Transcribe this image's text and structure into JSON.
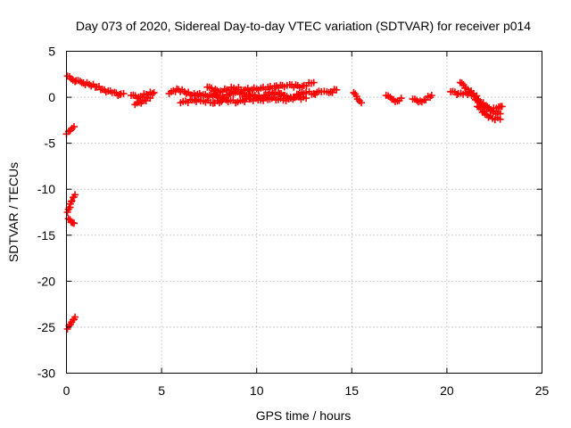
{
  "chart_data": {
    "type": "scatter",
    "title": "Day 073 of 2020, Sidereal Day-to-day VTEC variation (SDTVAR) for receiver p014",
    "xlabel": "GPS time / hours",
    "ylabel": "SDTVAR / TECUs",
    "xlim": [
      0,
      25
    ],
    "ylim": [
      -30,
      5
    ],
    "xticks": [
      0,
      5,
      10,
      15,
      20,
      25
    ],
    "yticks": [
      -30,
      -25,
      -20,
      -15,
      -10,
      -5,
      0,
      5
    ],
    "grid": true,
    "marker": "plus",
    "color": "#ff0000",
    "series": [
      {
        "name": "SDTVAR",
        "segments": [
          [
            [
              0.05,
              2.3
            ],
            [
              0.25,
              2.0
            ],
            [
              0.45,
              1.7
            ]
          ],
          [
            [
              0.5,
              1.8
            ],
            [
              0.8,
              1.6
            ],
            [
              1.2,
              1.4
            ],
            [
              1.6,
              1.1
            ],
            [
              2.0,
              0.8
            ],
            [
              2.4,
              0.5
            ],
            [
              2.8,
              0.3
            ],
            [
              3.0,
              0.4
            ]
          ],
          [
            [
              3.4,
              0.2
            ],
            [
              3.8,
              0.0
            ],
            [
              4.2,
              0.3
            ],
            [
              4.6,
              0.5
            ]
          ],
          [
            [
              3.6,
              -0.8
            ],
            [
              4.0,
              -0.4
            ],
            [
              4.4,
              -0.1
            ]
          ],
          [
            [
              5.4,
              0.4
            ],
            [
              5.8,
              0.9
            ],
            [
              6.2,
              0.6
            ],
            [
              6.6,
              0.2
            ],
            [
              7.0,
              0.4
            ],
            [
              7.4,
              0.1
            ],
            [
              7.8,
              0.3
            ],
            [
              8.2,
              -0.1
            ],
            [
              8.6,
              0.4
            ],
            [
              9.0,
              0.6
            ],
            [
              9.4,
              0.1
            ],
            [
              9.8,
              0.3
            ],
            [
              10.2,
              -0.1
            ],
            [
              10.6,
              0.3
            ],
            [
              11.0,
              0.5
            ],
            [
              11.4,
              0.2
            ],
            [
              11.8,
              -0.1
            ],
            [
              12.2,
              0.3
            ],
            [
              12.6,
              0.5
            ],
            [
              13.0,
              0.4
            ],
            [
              13.4,
              0.6
            ],
            [
              13.8,
              0.5
            ],
            [
              14.2,
              0.8
            ]
          ],
          [
            [
              6.0,
              -0.6
            ],
            [
              6.6,
              -0.3
            ],
            [
              7.2,
              -0.4
            ],
            [
              7.8,
              -0.6
            ],
            [
              8.4,
              -0.3
            ],
            [
              9.0,
              -0.5
            ],
            [
              9.6,
              -0.2
            ],
            [
              10.2,
              -0.3
            ],
            [
              10.8,
              -0.1
            ],
            [
              11.4,
              -0.3
            ],
            [
              12.0,
              0.0
            ],
            [
              12.6,
              -0.1
            ]
          ],
          [
            [
              7.4,
              1.1
            ],
            [
              8.0,
              0.6
            ],
            [
              8.8,
              1.0
            ],
            [
              9.4,
              0.8
            ],
            [
              10.0,
              0.9
            ],
            [
              11.6,
              1.3
            ],
            [
              12.4,
              1.2
            ],
            [
              13.0,
              1.6
            ]
          ],
          [
            [
              15.1,
              0.5
            ],
            [
              15.3,
              -0.2
            ],
            [
              15.5,
              -0.6
            ]
          ],
          [
            [
              16.8,
              0.2
            ],
            [
              17.1,
              -0.2
            ],
            [
              17.4,
              -0.4
            ],
            [
              17.6,
              -0.1
            ]
          ],
          [
            [
              18.2,
              -0.2
            ],
            [
              18.5,
              -0.5
            ],
            [
              18.8,
              -0.3
            ],
            [
              19.2,
              0.2
            ]
          ],
          [
            [
              20.2,
              0.6
            ],
            [
              20.6,
              0.4
            ],
            [
              21.0,
              0.5
            ],
            [
              21.3,
              0.2
            ],
            [
              21.7,
              -0.5
            ],
            [
              22.0,
              -1.0
            ],
            [
              22.4,
              -1.5
            ],
            [
              22.8,
              -1.8
            ]
          ],
          [
            [
              20.7,
              1.6
            ],
            [
              21.0,
              1.0
            ],
            [
              21.4,
              0.4
            ],
            [
              21.8,
              -0.6
            ],
            [
              22.2,
              -1.2
            ],
            [
              22.6,
              -1.2
            ],
            [
              22.9,
              -1.0
            ]
          ],
          [
            [
              21.6,
              -1.0
            ],
            [
              22.0,
              -1.8
            ],
            [
              22.4,
              -2.3
            ],
            [
              22.8,
              -2.4
            ]
          ],
          [
            [
              0.0,
              -4.0
            ],
            [
              0.2,
              -3.6
            ],
            [
              0.4,
              -3.2
            ]
          ],
          [
            [
              0.05,
              -12.5
            ],
            [
              0.2,
              -11.6
            ],
            [
              0.35,
              -10.9
            ],
            [
              0.45,
              -10.6
            ]
          ],
          [
            [
              0.1,
              -13.2
            ],
            [
              0.25,
              -13.6
            ],
            [
              0.4,
              -13.7
            ]
          ],
          [
            [
              0.05,
              -25.2
            ],
            [
              0.2,
              -24.7
            ],
            [
              0.35,
              -24.2
            ],
            [
              0.45,
              -23.9
            ]
          ]
        ]
      }
    ]
  }
}
